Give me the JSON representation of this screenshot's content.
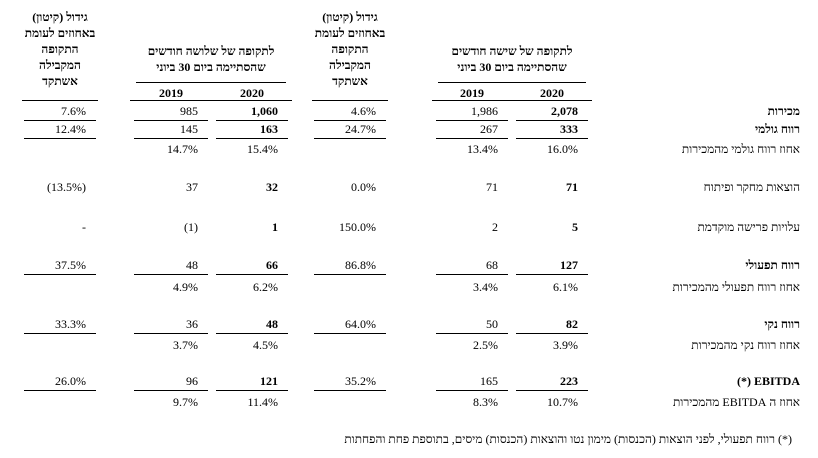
{
  "table": {
    "headers": [
      {
        "lines": [
          "לתקופה של שישה חודשים",
          "שהסתיימה ביום 30 ביוני"
        ],
        "years": [
          "2020",
          "2019"
        ]
      },
      {
        "lines": [
          "גידול (קיטון)",
          "באחוזים לעומת",
          "התקופה",
          "המקבילה",
          "אשתקד"
        ]
      },
      {
        "lines": [
          "לתקופה של שלושה חודשים",
          "שהסתיימה ביום 30 ביוני"
        ],
        "years": [
          "2020",
          "2019"
        ]
      },
      {
        "lines": [
          "גידול (קיטון)",
          "באחוזים לעומת",
          "התקופה",
          "המקבילה",
          "אשתקד"
        ]
      }
    ],
    "rows": [
      {
        "label": "מכירות",
        "cells": [
          "2,078",
          "1,986",
          "4.6%",
          "1,060",
          "985",
          "7.6%"
        ]
      },
      {
        "label": "רווח גולמי",
        "cells": [
          "333",
          "267",
          "24.7%",
          "163",
          "145",
          "12.4%"
        ]
      },
      {
        "label": "אחוז רווח גולמי מהמכירות",
        "cells": [
          "16.0%",
          "13.4%",
          null,
          "15.4%",
          "14.7%",
          null
        ]
      },
      {
        "label": "הוצאות מחקר ופיתוח",
        "cells": [
          "71",
          "71",
          "0.0%",
          "32",
          "37",
          "(13.5%)"
        ]
      },
      {
        "label": "עלויות פרישה מוקדמת",
        "cells": [
          "5",
          "2",
          "150.0%",
          "1",
          "(1)",
          "-"
        ]
      },
      {
        "label": "רווח תפעולי",
        "cells": [
          "127",
          "68",
          "86.8%",
          "66",
          "48",
          "37.5%"
        ]
      },
      {
        "label": "אחוז רווח תפעולי מהמכירות",
        "cells": [
          "6.1%",
          "3.4%",
          null,
          "6.2%",
          "4.9%",
          null
        ]
      },
      {
        "label": "רווח נקי",
        "cells": [
          "82",
          "50",
          "64.0%",
          "48",
          "36",
          "33.3%"
        ]
      },
      {
        "label": "אחוז רווח נקי מהמכירות",
        "cells": [
          "3.9%",
          "2.5%",
          null,
          "4.5%",
          "3.7%",
          null
        ]
      },
      {
        "label": "EBITDA (*)",
        "cells": [
          "223",
          "165",
          "35.2%",
          "121",
          "96",
          "26.0%"
        ]
      },
      {
        "label": "אחוז ה EBITDA מהמכירות",
        "cells": [
          "10.7%",
          "8.3%",
          null,
          "11.4%",
          "9.7%",
          null
        ]
      }
    ],
    "footnote": "(*) רווח תפעולי, לפני הוצאות (הכנסות) מימון נטו והוצאות (הכנסות) מיסים, בתוספת פחת והפחתות"
  }
}
